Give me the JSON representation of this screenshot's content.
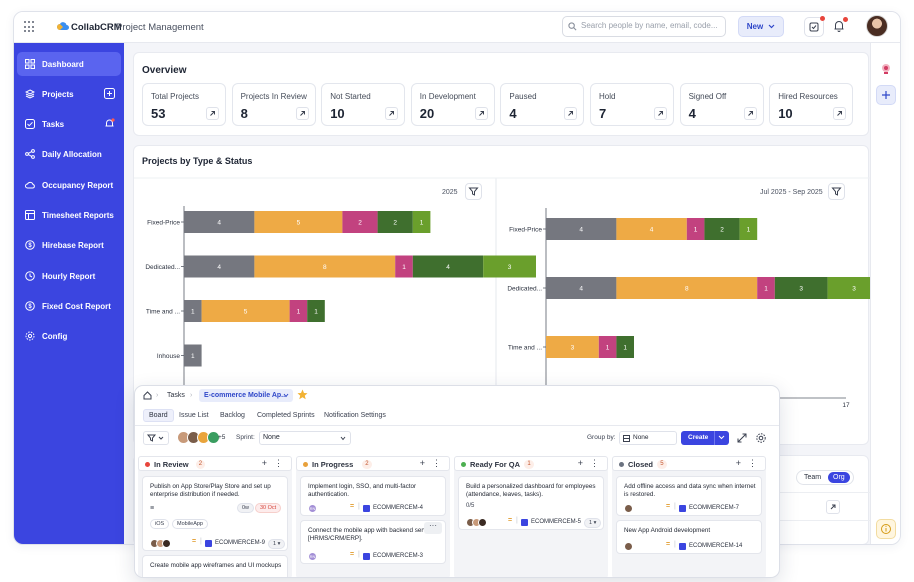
{
  "app": {
    "brand": "CollabCRM",
    "subtitle": "Project Management"
  },
  "topbar": {
    "search_placeholder": "Search people by name, email, code...",
    "new_label": "New"
  },
  "sidebar": {
    "items": [
      {
        "label": "Dashboard",
        "icon": "grid-icon",
        "active": true
      },
      {
        "label": "Projects",
        "icon": "layers-icon"
      },
      {
        "label": "Tasks",
        "icon": "checkbox-icon"
      },
      {
        "label": "Daily Allocation",
        "icon": "share-icon"
      },
      {
        "label": "Occupancy Report",
        "icon": "cloud-icon"
      },
      {
        "label": "Timesheet Reports",
        "icon": "sheet-icon"
      },
      {
        "label": "Hirebase Report",
        "icon": "coin-icon"
      },
      {
        "label": "Hourly Report",
        "icon": "clock-icon"
      },
      {
        "label": "Fixed Cost Report",
        "icon": "dollar-icon"
      },
      {
        "label": "Config",
        "icon": "gear-icon"
      }
    ]
  },
  "overview": {
    "title": "Overview",
    "stats": [
      {
        "label": "Total Projects",
        "value": "53"
      },
      {
        "label": "Projects In Review",
        "value": "8"
      },
      {
        "label": "Not Started",
        "value": "10"
      },
      {
        "label": "In Development",
        "value": "20"
      },
      {
        "label": "Paused",
        "value": "4"
      },
      {
        "label": "Hold",
        "value": "7"
      },
      {
        "label": "Signed Off",
        "value": "4"
      },
      {
        "label": "Hired Resources",
        "value": "10"
      }
    ]
  },
  "projects_section": {
    "title": "Projects by Type & Status",
    "team_label": "Team",
    "org_label": "Org"
  },
  "colors": {
    "gray": "#75777f",
    "orange": "#eeaa45",
    "magenta": "#c2427f",
    "darkgreen": "#3f6f2e",
    "green": "#6a9f2c"
  },
  "chart_data": [
    {
      "type": "bar",
      "orientation": "horizontal",
      "stacked": true,
      "filter_label": "2025",
      "categories": [
        "Fixed-Price",
        "Dedicated...",
        "Time and ...",
        "Inhouse"
      ],
      "series": [
        {
          "color": "gray",
          "values": [
            4,
            4,
            1,
            1
          ]
        },
        {
          "color": "orange",
          "values": [
            5,
            8,
            5,
            0
          ]
        },
        {
          "color": "magenta",
          "values": [
            2,
            1,
            1,
            0
          ]
        },
        {
          "color": "darkgreen",
          "values": [
            2,
            4,
            1,
            0
          ]
        },
        {
          "color": "green",
          "values": [
            1,
            3,
            0,
            0
          ]
        }
      ]
    },
    {
      "type": "bar",
      "orientation": "horizontal",
      "stacked": true,
      "filter_label": "Jul 2025 - Sep 2025",
      "categories": [
        "Fixed-Price",
        "Dedicated...",
        "Time and ..."
      ],
      "series": [
        {
          "color": "gray",
          "values": [
            4,
            4,
            0
          ]
        },
        {
          "color": "orange",
          "values": [
            4,
            8,
            3
          ]
        },
        {
          "color": "magenta",
          "values": [
            1,
            1,
            1
          ]
        },
        {
          "color": "darkgreen",
          "values": [
            2,
            3,
            1
          ]
        },
        {
          "color": "green",
          "values": [
            1,
            3,
            0
          ]
        }
      ],
      "x_max_tick": "17"
    }
  ],
  "tasks_panel": {
    "breadcrumb_root": "Tasks",
    "project": "E-commerce Mobile Ap...",
    "tabs": [
      "Board",
      "Issue List",
      "Backlog",
      "Completed Sprints",
      "Notification Settings"
    ],
    "extra_members": "+5",
    "sprint_label": "Sprint:",
    "sprint_value": "None",
    "group_by_label": "Group by:",
    "group_by_value": "None",
    "create_label": "Create",
    "columns": [
      {
        "name": "In Review",
        "count": "2",
        "color": "#e8453c",
        "cards": [
          {
            "title": "Publish on App Store/Play Store and set up enterprise distribution if needed.",
            "badge1": "0w",
            "badge2": "30 Oct",
            "tags": [
              "iOS",
              "MobileApp"
            ],
            "key": "ECOMMERCEM-9",
            "points": "1"
          },
          {
            "title": "Create mobile app wireframes and UI mockups"
          }
        ]
      },
      {
        "name": "In Progress",
        "count": "2",
        "color": "#e8a13c",
        "cards": [
          {
            "title": "Implement login, SSO, and multi-factor authentication.",
            "initials": "RN",
            "key": "ECOMMERCEM-4"
          },
          {
            "title": "Connect the mobile app with backend services [HRMS/CRM/ERP].",
            "initials": "RN",
            "key": "ECOMMERCEM-3"
          }
        ]
      },
      {
        "name": "Ready For QA",
        "count": "1",
        "color": "#4caf50",
        "cards": [
          {
            "title": "Build a personalized dashboard for employees (attendance, leaves, tasks).",
            "sub": "0/5",
            "key": "ECOMMERCEM-5",
            "points": "1"
          }
        ]
      },
      {
        "name": "Closed",
        "count": "5",
        "color": "#6b7280",
        "cards": [
          {
            "title": "Add offline access and data sync when internet is restored.",
            "key": "ECOMMERCEM-7"
          },
          {
            "title": "New App Android development",
            "key": "ECOMMERCEM-14"
          }
        ]
      }
    ]
  }
}
